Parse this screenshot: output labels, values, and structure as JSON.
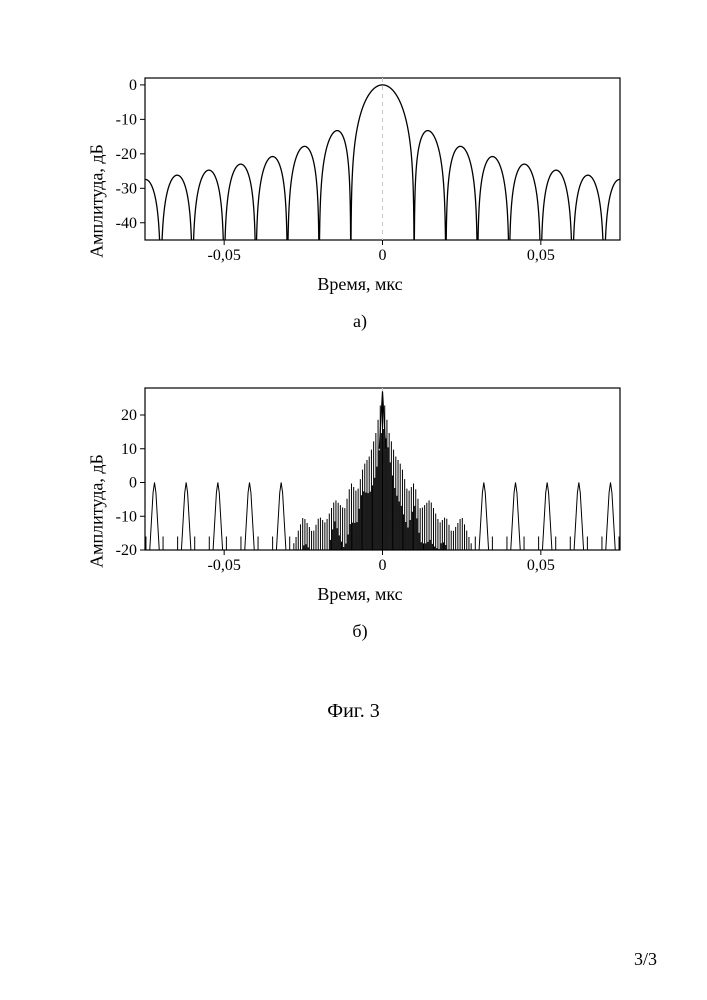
{
  "page": {
    "number": "3/3"
  },
  "figure": {
    "caption": "Фиг. 3"
  },
  "chart_a": {
    "type": "line",
    "sublabel": "а)",
    "xlabel": "Время, мкс",
    "ylabel": "Амплитуда, дБ",
    "xlim": [
      -0.075,
      0.075
    ],
    "ylim": [
      -45,
      2
    ],
    "xticks": [
      -0.05,
      0,
      0.05
    ],
    "xticklabels": [
      "-0,05",
      "0",
      "0,05"
    ],
    "yticks": [
      -40,
      -30,
      -20,
      -10,
      0
    ],
    "yticklabels": [
      "-40",
      "-30",
      "-20",
      "-10",
      "0"
    ],
    "line_color": "#000000",
    "line_width": 1.3,
    "background_color": "#ffffff",
    "border_color": "#000000",
    "grid_color": "#cccccc",
    "tick_fontsize": 16,
    "label_fontsize": 18,
    "lobe_peaks_db": [
      -28,
      -27,
      -26,
      -25,
      -24,
      -23,
      -13,
      0,
      -13,
      -23,
      -24,
      -25,
      -26,
      -27,
      -28
    ],
    "null_positions": [
      -0.075,
      -0.065,
      -0.055,
      -0.045,
      -0.035,
      -0.025,
      -0.015,
      0.015,
      0.025,
      0.035,
      0.045,
      0.055,
      0.065,
      0.075
    ],
    "sinc_scale": 0.01
  },
  "chart_b": {
    "type": "line",
    "sublabel": "б)",
    "xlabel": "Время, мкс",
    "ylabel": "Амплитуда, дБ",
    "xlim": [
      -0.075,
      0.075
    ],
    "ylim": [
      -20,
      28
    ],
    "xticks": [
      -0.05,
      0,
      0.05
    ],
    "xticklabels": [
      "-0,05",
      "0",
      "0,05"
    ],
    "yticks": [
      -20,
      -10,
      0,
      10,
      20
    ],
    "yticklabels": [
      "-20",
      "-10",
      "0",
      "10",
      "20"
    ],
    "line_color": "#000000",
    "line_width": 1.0,
    "background_color": "#ffffff",
    "border_color": "#000000",
    "grid_color": "#cccccc",
    "tick_fontsize": 16,
    "label_fontsize": 18,
    "spike_positions": [
      -0.072,
      -0.062,
      -0.052,
      -0.042,
      -0.032,
      0.032,
      0.042,
      0.052,
      0.062,
      0.072
    ],
    "spike_peak_db": 0,
    "spike_width": 0.0015,
    "central_peak_db": 27,
    "floor_db": -20,
    "envelope": [
      [
        -0.028,
        -18
      ],
      [
        -0.025,
        -10
      ],
      [
        -0.022,
        -15
      ],
      [
        -0.02,
        -10
      ],
      [
        -0.018,
        -12
      ],
      [
        -0.015,
        -5
      ],
      [
        -0.012,
        -8
      ],
      [
        -0.01,
        0
      ],
      [
        -0.008,
        -3
      ],
      [
        -0.006,
        5
      ],
      [
        -0.004,
        8
      ],
      [
        -0.002,
        15
      ],
      [
        0,
        27
      ],
      [
        0.002,
        15
      ],
      [
        0.004,
        8
      ],
      [
        0.006,
        5
      ],
      [
        0.008,
        -3
      ],
      [
        0.01,
        0
      ],
      [
        0.012,
        -8
      ],
      [
        0.015,
        -5
      ],
      [
        0.018,
        -12
      ],
      [
        0.02,
        -10
      ],
      [
        0.022,
        -15
      ],
      [
        0.025,
        -10
      ],
      [
        0.028,
        -18
      ]
    ]
  }
}
